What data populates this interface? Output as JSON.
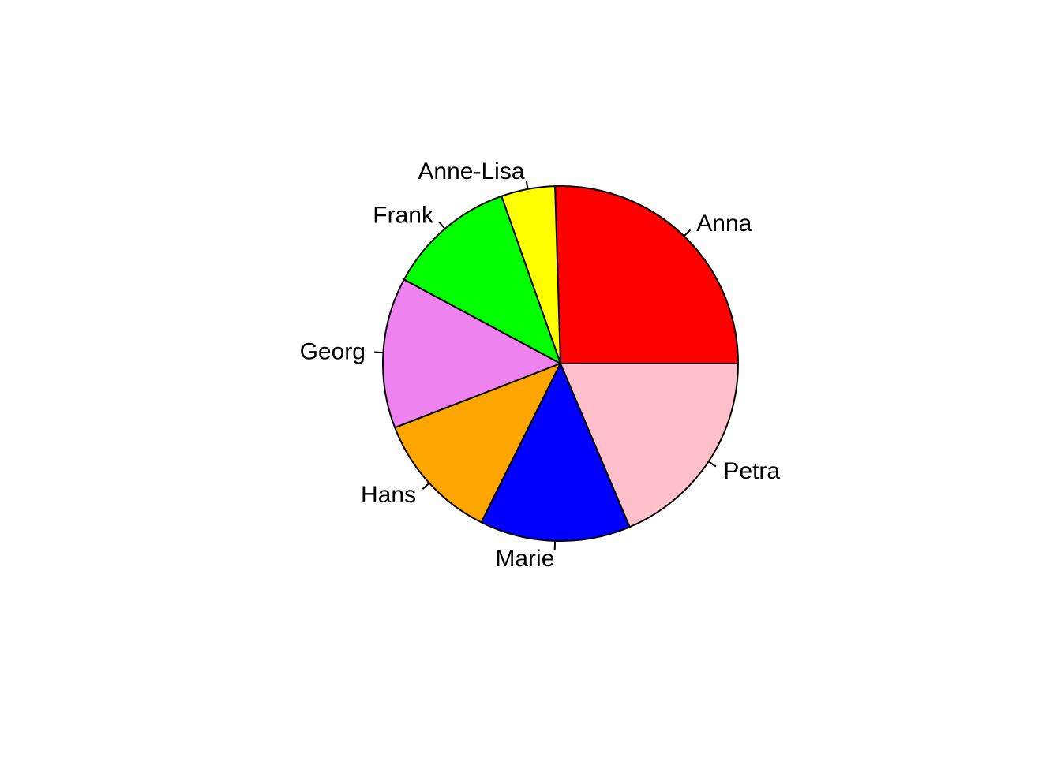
{
  "chart_data": {
    "type": "pie",
    "title": "",
    "start_angle_deg": 0,
    "direction": "counterclockwise",
    "slices": [
      {
        "label": "Anna",
        "value": 26,
        "color": "#FF0000"
      },
      {
        "label": "Anne-Lisa",
        "value": 5,
        "color": "#FFFF00"
      },
      {
        "label": "Frank",
        "value": 12,
        "color": "#00FF00"
      },
      {
        "label": "Georg",
        "value": 14,
        "color": "#EE82EE"
      },
      {
        "label": "Hans",
        "value": 12,
        "color": "#FFA500"
      },
      {
        "label": "Marie",
        "value": 14,
        "color": "#0000FF"
      },
      {
        "label": "Petra",
        "value": 19,
        "color": "#FFC0CB"
      }
    ]
  }
}
